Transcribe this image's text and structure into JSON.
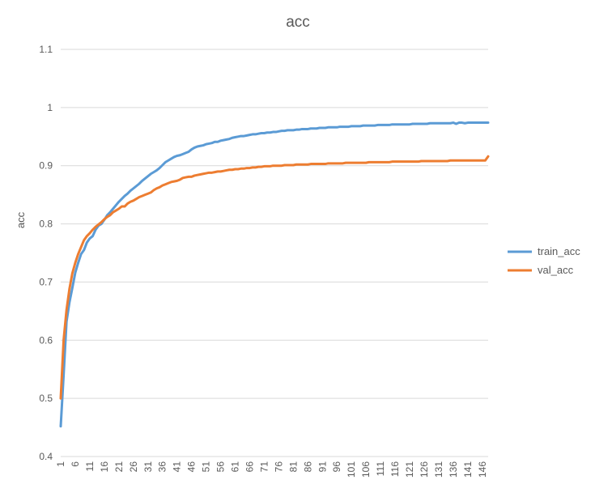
{
  "chart_data": {
    "type": "line",
    "title": "acc",
    "xlabel": "",
    "ylabel": "acc",
    "ylim": [
      0.4,
      1.1
    ],
    "yticks": [
      "0.4",
      "0.5",
      "0.6",
      "0.7",
      "0.8",
      "0.9",
      "1",
      "1.1"
    ],
    "xticks": [
      "1",
      "6",
      "11",
      "16",
      "21",
      "26",
      "31",
      "36",
      "41",
      "46",
      "51",
      "56",
      "61",
      "66",
      "71",
      "76",
      "81",
      "86",
      "91",
      "96",
      "101",
      "106",
      "111",
      "116",
      "121",
      "126",
      "131",
      "136",
      "141",
      "146"
    ],
    "grid": true,
    "legend_position": "right",
    "x": [
      1,
      2,
      3,
      4,
      5,
      6,
      7,
      8,
      9,
      10,
      11,
      12,
      13,
      14,
      15,
      16,
      17,
      18,
      19,
      20,
      21,
      22,
      23,
      24,
      25,
      26,
      27,
      28,
      29,
      30,
      31,
      32,
      33,
      34,
      35,
      36,
      37,
      38,
      39,
      40,
      41,
      42,
      43,
      44,
      45,
      46,
      47,
      48,
      49,
      50,
      51,
      52,
      53,
      54,
      55,
      56,
      57,
      58,
      59,
      60,
      61,
      62,
      63,
      64,
      65,
      66,
      67,
      68,
      69,
      70,
      71,
      72,
      73,
      74,
      75,
      76,
      77,
      78,
      79,
      80,
      81,
      82,
      83,
      84,
      85,
      86,
      87,
      88,
      89,
      90,
      91,
      92,
      93,
      94,
      95,
      96,
      97,
      98,
      99,
      100,
      101,
      102,
      103,
      104,
      105,
      106,
      107,
      108,
      109,
      110,
      111,
      112,
      113,
      114,
      115,
      116,
      117,
      118,
      119,
      120,
      121,
      122,
      123,
      124,
      125,
      126,
      127,
      128,
      129,
      130,
      131,
      132,
      133,
      134,
      135,
      136,
      137,
      138,
      139,
      140,
      141,
      142,
      143,
      144,
      145,
      146,
      147,
      148
    ],
    "series": [
      {
        "name": "train_acc",
        "color": "#5b9bd5",
        "values": [
          0.452,
          0.54,
          0.632,
          0.665,
          0.69,
          0.716,
          0.733,
          0.748,
          0.755,
          0.768,
          0.775,
          0.779,
          0.79,
          0.797,
          0.8,
          0.807,
          0.815,
          0.82,
          0.826,
          0.832,
          0.838,
          0.843,
          0.848,
          0.852,
          0.857,
          0.861,
          0.865,
          0.869,
          0.874,
          0.878,
          0.882,
          0.886,
          0.889,
          0.892,
          0.896,
          0.901,
          0.906,
          0.909,
          0.912,
          0.915,
          0.917,
          0.918,
          0.92,
          0.922,
          0.924,
          0.928,
          0.931,
          0.933,
          0.934,
          0.935,
          0.937,
          0.938,
          0.939,
          0.941,
          0.941,
          0.943,
          0.944,
          0.945,
          0.946,
          0.948,
          0.949,
          0.95,
          0.951,
          0.951,
          0.952,
          0.953,
          0.954,
          0.954,
          0.955,
          0.956,
          0.956,
          0.957,
          0.957,
          0.958,
          0.958,
          0.959,
          0.96,
          0.96,
          0.961,
          0.961,
          0.961,
          0.962,
          0.962,
          0.963,
          0.963,
          0.963,
          0.964,
          0.964,
          0.964,
          0.965,
          0.965,
          0.965,
          0.966,
          0.966,
          0.966,
          0.966,
          0.967,
          0.967,
          0.967,
          0.967,
          0.968,
          0.968,
          0.968,
          0.968,
          0.969,
          0.969,
          0.969,
          0.969,
          0.969,
          0.97,
          0.97,
          0.97,
          0.97,
          0.97,
          0.971,
          0.971,
          0.971,
          0.971,
          0.971,
          0.971,
          0.971,
          0.972,
          0.972,
          0.972,
          0.972,
          0.972,
          0.972,
          0.973,
          0.973,
          0.973,
          0.973,
          0.973,
          0.973,
          0.973,
          0.973,
          0.974,
          0.972,
          0.974,
          0.974,
          0.973,
          0.974,
          0.974,
          0.974,
          0.974,
          0.974,
          0.974,
          0.974,
          0.974
        ]
      },
      {
        "name": "val_acc",
        "color": "#ed7d31",
        "values": [
          0.5,
          0.6,
          0.652,
          0.688,
          0.715,
          0.733,
          0.748,
          0.76,
          0.772,
          0.779,
          0.784,
          0.79,
          0.795,
          0.799,
          0.803,
          0.808,
          0.812,
          0.815,
          0.82,
          0.823,
          0.826,
          0.83,
          0.83,
          0.835,
          0.838,
          0.84,
          0.843,
          0.846,
          0.848,
          0.85,
          0.852,
          0.854,
          0.858,
          0.861,
          0.863,
          0.866,
          0.868,
          0.87,
          0.872,
          0.873,
          0.874,
          0.876,
          0.879,
          0.88,
          0.881,
          0.881,
          0.883,
          0.884,
          0.885,
          0.886,
          0.887,
          0.888,
          0.888,
          0.889,
          0.89,
          0.89,
          0.891,
          0.892,
          0.893,
          0.893,
          0.894,
          0.894,
          0.895,
          0.895,
          0.896,
          0.896,
          0.897,
          0.897,
          0.898,
          0.898,
          0.899,
          0.899,
          0.899,
          0.9,
          0.9,
          0.9,
          0.9,
          0.901,
          0.901,
          0.901,
          0.901,
          0.902,
          0.902,
          0.902,
          0.902,
          0.902,
          0.903,
          0.903,
          0.903,
          0.903,
          0.903,
          0.903,
          0.904,
          0.904,
          0.904,
          0.904,
          0.904,
          0.904,
          0.905,
          0.905,
          0.905,
          0.905,
          0.905,
          0.905,
          0.905,
          0.905,
          0.906,
          0.906,
          0.906,
          0.906,
          0.906,
          0.906,
          0.906,
          0.906,
          0.907,
          0.907,
          0.907,
          0.907,
          0.907,
          0.907,
          0.907,
          0.907,
          0.907,
          0.907,
          0.908,
          0.908,
          0.908,
          0.908,
          0.908,
          0.908,
          0.908,
          0.908,
          0.908,
          0.908,
          0.909,
          0.909,
          0.909,
          0.909,
          0.909,
          0.909,
          0.909,
          0.909,
          0.909,
          0.909,
          0.909,
          0.909,
          0.909,
          0.916
        ]
      }
    ]
  }
}
